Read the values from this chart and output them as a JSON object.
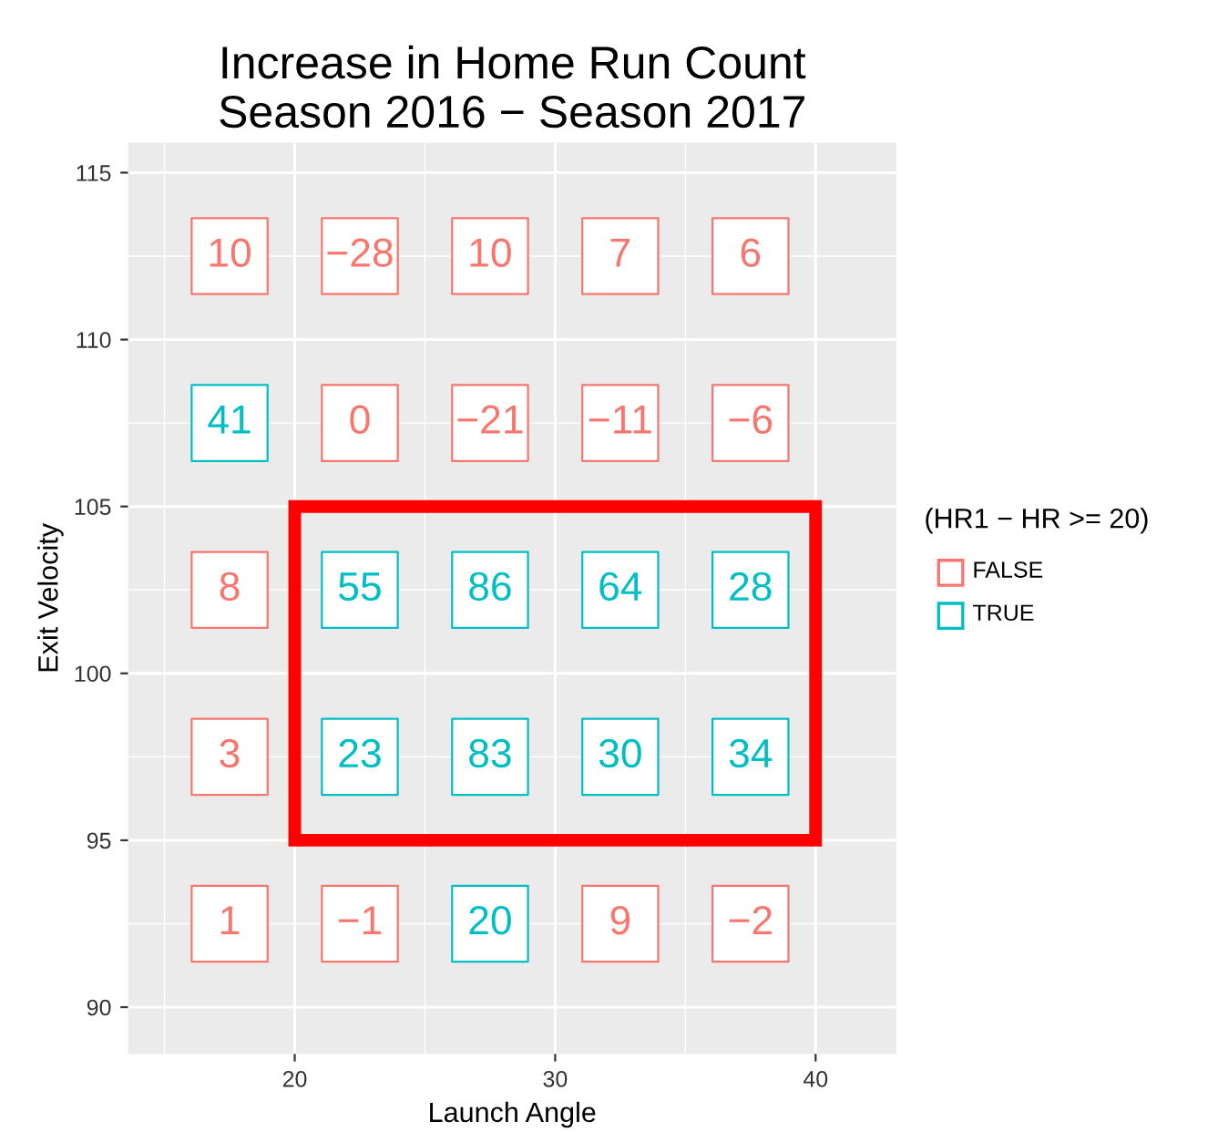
{
  "chart_data": {
    "type": "scatter",
    "title": "Increase in Home Run Count\nSeason 2016 − Season 2017",
    "xlabel": "Launch Angle",
    "ylabel": "Exit Velocity",
    "legend_title": "(HR1 − HR >= 20)",
    "legend": "right",
    "grid": true,
    "marker": "square",
    "xlim": [
      13.6,
      43.1
    ],
    "ylim": [
      88.6,
      115.9
    ],
    "xticks": [
      20,
      30,
      40
    ],
    "yticks": [
      90,
      95,
      100,
      105,
      110,
      115
    ],
    "series": [
      {
        "name": "FALSE",
        "color": "#f8766d",
        "x": [
          17.5,
          22.5,
          27.5,
          32.5,
          37.5,
          22.5,
          27.5,
          32.5,
          37.5,
          17.5,
          17.5,
          17.5,
          22.5,
          32.5,
          37.5
        ],
        "values": [
          112.5,
          112.5,
          112.5,
          112.5,
          112.5,
          107.5,
          107.5,
          107.5,
          107.5,
          102.5,
          97.5,
          92.5,
          92.5,
          92.5,
          92.5
        ]
      },
      {
        "name": "TRUE",
        "color": "#00bfc4",
        "x": [
          17.5,
          22.5,
          27.5,
          32.5,
          37.5,
          22.5,
          27.5,
          32.5,
          37.5,
          27.5
        ],
        "values": [
          107.5,
          102.5,
          102.5,
          102.5,
          102.5,
          97.5,
          97.5,
          97.5,
          97.5,
          92.5
        ]
      }
    ],
    "annotations": [
      {
        "text": "10",
        "x": 17.5,
        "y": 112.5
      },
      {
        "text": "−28",
        "x": 22.5,
        "y": 112.5
      },
      {
        "text": "10",
        "x": 27.5,
        "y": 112.5
      },
      {
        "text": "7",
        "x": 32.5,
        "y": 112.5
      },
      {
        "text": "6",
        "x": 37.5,
        "y": 112.5
      },
      {
        "text": "41",
        "x": 17.5,
        "y": 107.5
      },
      {
        "text": "0",
        "x": 22.5,
        "y": 107.5
      },
      {
        "text": "−21",
        "x": 27.5,
        "y": 107.5
      },
      {
        "text": "−11",
        "x": 32.5,
        "y": 107.5
      },
      {
        "text": "−6",
        "x": 37.5,
        "y": 107.5
      },
      {
        "text": "8",
        "x": 17.5,
        "y": 102.5
      },
      {
        "text": "55",
        "x": 22.5,
        "y": 102.5
      },
      {
        "text": "86",
        "x": 27.5,
        "y": 102.5
      },
      {
        "text": "64",
        "x": 32.5,
        "y": 102.5
      },
      {
        "text": "28",
        "x": 37.5,
        "y": 102.5
      },
      {
        "text": "3",
        "x": 17.5,
        "y": 97.5
      },
      {
        "text": "23",
        "x": 22.5,
        "y": 97.5
      },
      {
        "text": "83",
        "x": 27.5,
        "y": 97.5
      },
      {
        "text": "30",
        "x": 32.5,
        "y": 97.5
      },
      {
        "text": "34",
        "x": 37.5,
        "y": 97.5
      },
      {
        "text": "1",
        "x": 17.5,
        "y": 92.5
      },
      {
        "text": "−1",
        "x": 22.5,
        "y": 92.5
      },
      {
        "text": "20",
        "x": 27.5,
        "y": 92.5
      },
      {
        "text": "9",
        "x": 32.5,
        "y": 92.5
      },
      {
        "text": "−2",
        "x": 37.5,
        "y": 92.5
      }
    ]
  }
}
